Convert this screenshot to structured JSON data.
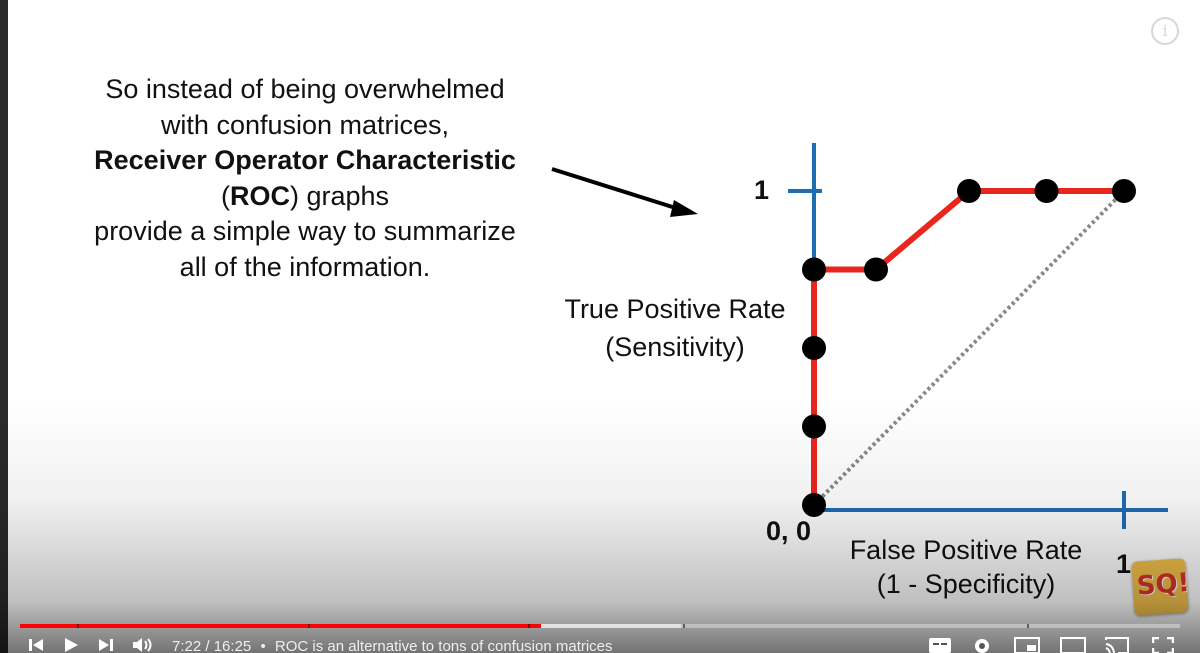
{
  "video": {
    "caption_lines": [
      {
        "parts": [
          {
            "text": "So instead of being overwhelmed",
            "bold": false
          }
        ]
      },
      {
        "parts": [
          {
            "text": "with confusion matrices,",
            "bold": false
          }
        ]
      },
      {
        "parts": [
          {
            "text": "Receiver Operator Characteristic",
            "bold": true
          }
        ]
      },
      {
        "parts": [
          {
            "text": "(",
            "bold": false
          },
          {
            "text": "ROC",
            "bold": true
          },
          {
            "text": ") graphs",
            "bold": false
          }
        ]
      },
      {
        "parts": [
          {
            "text": "provide a simple way to summarize",
            "bold": false
          }
        ]
      },
      {
        "parts": [
          {
            "text": "all of the information.",
            "bold": false
          }
        ]
      }
    ],
    "ylabel_line1": "True Positive Rate",
    "ylabel_line2": "(Sensitivity)",
    "xlabel_line1": "False Positive Rate",
    "xlabel_line2": "(1 - Specificity)",
    "y_tick_one": "1",
    "x_tick_one": "1",
    "origin_label": "0, 0",
    "logo_text": "SQ!",
    "colors": {
      "axis": "#1f6db3",
      "roc_line": "#e8261e",
      "point": "#000000",
      "diagonal": "#888888"
    }
  },
  "chart_data": {
    "type": "line",
    "xlabel": "False Positive Rate (1 - Specificity)",
    "ylabel": "True Positive Rate (Sensitivity)",
    "xlim": [
      0,
      1
    ],
    "ylim": [
      0,
      1
    ],
    "points": [
      {
        "x": 0,
        "y": 0
      },
      {
        "x": 0,
        "y": 0.25
      },
      {
        "x": 0,
        "y": 0.5
      },
      {
        "x": 0,
        "y": 0.75
      },
      {
        "x": 0.2,
        "y": 0.75
      },
      {
        "x": 0.5,
        "y": 1
      },
      {
        "x": 0.75,
        "y": 1
      },
      {
        "x": 1,
        "y": 1
      }
    ],
    "diagonal": [
      {
        "x": 0,
        "y": 0
      },
      {
        "x": 1,
        "y": 1
      }
    ]
  },
  "player": {
    "current_time": "7:22",
    "duration": "16:25",
    "separator": "/",
    "bullet": "•",
    "chapter_title": "ROC is an alternative to tons of confusion matrices",
    "played_fraction": 0.449,
    "buffered_fraction": 0.57,
    "icons": [
      "previous-icon",
      "play-icon",
      "next-icon",
      "volume-icon",
      "subtitles-icon",
      "settings-icon",
      "miniplayer-icon",
      "theater-icon",
      "cast-icon",
      "fullscreen-icon",
      "info-icon"
    ]
  }
}
